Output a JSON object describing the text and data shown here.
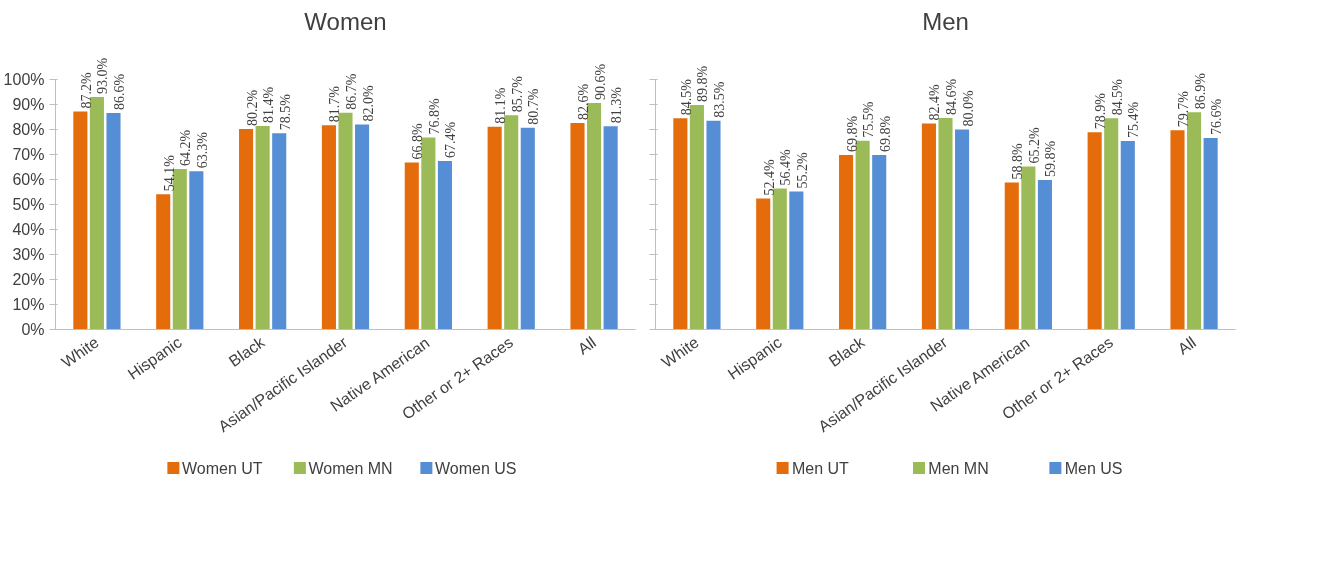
{
  "chart_data": [
    {
      "type": "bar",
      "title": "Women",
      "categories": [
        "White",
        "Hispanic",
        "Black",
        "Asian/Pacific Islander",
        "Native American",
        "Other or 2+ Races",
        "All"
      ],
      "series": [
        {
          "name": "Women UT",
          "color": "#e46c0a",
          "values": [
            87.2,
            54.1,
            80.2,
            81.7,
            66.8,
            81.1,
            82.6
          ],
          "value_labels": [
            "87.2%",
            "54.1%",
            "80.2%",
            "81.7%",
            "66.8%",
            "81.1%",
            "82.6%"
          ]
        },
        {
          "name": "Women MN",
          "color": "#9bbb59",
          "values": [
            93.0,
            64.2,
            81.4,
            86.7,
            76.8,
            85.7,
            90.6
          ],
          "value_labels": [
            "93.0%",
            "64.2%",
            "81.4%",
            "86.7%",
            "76.8%",
            "85.7%",
            "90.6%"
          ]
        },
        {
          "name": "Women US",
          "color": "#558ed5",
          "values": [
            86.6,
            63.3,
            78.5,
            82.0,
            67.4,
            80.7,
            81.3
          ],
          "value_labels": [
            "86.6%",
            "63.3%",
            "78.5%",
            "82.0%",
            "67.4%",
            "80.7%",
            "81.3%"
          ]
        }
      ],
      "ylim": [
        0,
        100
      ],
      "yticks": [
        {
          "value": 0,
          "label": "0%"
        },
        {
          "value": 10,
          "label": "10%"
        },
        {
          "value": 20,
          "label": "20%"
        },
        {
          "value": 30,
          "label": "30%"
        },
        {
          "value": 40,
          "label": "40%"
        },
        {
          "value": 50,
          "label": "50%"
        },
        {
          "value": 60,
          "label": "60%"
        },
        {
          "value": 70,
          "label": "70%"
        },
        {
          "value": 80,
          "label": "80%"
        },
        {
          "value": 90,
          "label": "90%"
        },
        {
          "value": 100,
          "label": "100%"
        }
      ],
      "legend": "bottom"
    },
    {
      "type": "bar",
      "title": "Men",
      "categories": [
        "White",
        "Hispanic",
        "Black",
        "Asian/Pacific Islander",
        "Native American",
        "Other or 2+ Races",
        "All"
      ],
      "series": [
        {
          "name": "Men UT",
          "color": "#e46c0a",
          "values": [
            84.5,
            52.4,
            69.8,
            82.4,
            58.8,
            78.9,
            79.7
          ],
          "value_labels": [
            "84.5%",
            "52.4%",
            "69.8%",
            "82.4%",
            "58.8%",
            "78.9%",
            "79.7%"
          ]
        },
        {
          "name": "Men MN",
          "color": "#9bbb59",
          "values": [
            89.8,
            56.4,
            75.5,
            84.6,
            65.2,
            84.5,
            86.9
          ],
          "value_labels": [
            "89.8%",
            "56.4%",
            "75.5%",
            "84.6%",
            "65.2%",
            "84.5%",
            "86.9%"
          ]
        },
        {
          "name": "Men US",
          "color": "#558ed5",
          "values": [
            83.5,
            55.2,
            69.8,
            80.0,
            59.8,
            75.4,
            76.6
          ],
          "value_labels": [
            "83.5%",
            "55.2%",
            "69.8%",
            "80.0%",
            "59.8%",
            "75.4%",
            "76.6%"
          ]
        }
      ],
      "ylim": [
        0,
        100
      ],
      "yticks": [
        {
          "value": 0,
          "label": null
        },
        {
          "value": 10,
          "label": null
        },
        {
          "value": 20,
          "label": null
        },
        {
          "value": 30,
          "label": null
        },
        {
          "value": 40,
          "label": null
        },
        {
          "value": 50,
          "label": null
        },
        {
          "value": 60,
          "label": null
        },
        {
          "value": 70,
          "label": null
        },
        {
          "value": 80,
          "label": null
        },
        {
          "value": 90,
          "label": null
        },
        {
          "value": 100,
          "label": null
        }
      ],
      "tick_labels": "x",
      "legend": "bottom"
    }
  ]
}
